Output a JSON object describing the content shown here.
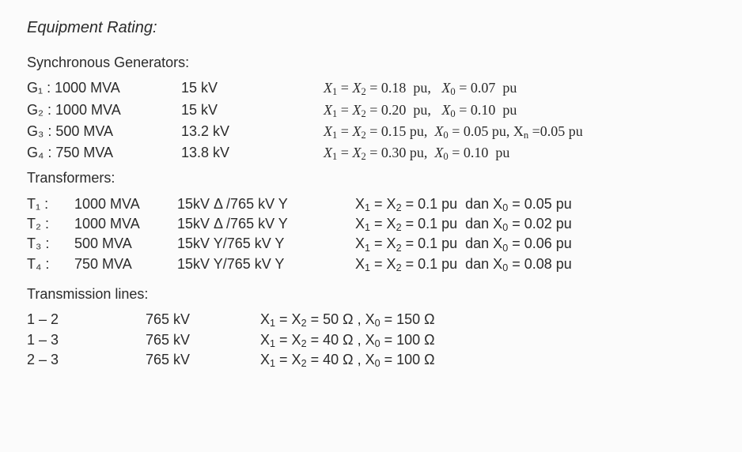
{
  "title": "Equipment Rating:",
  "sections": {
    "generators": {
      "heading": "Synchronous Generators:",
      "rows": [
        {
          "label": "G₁ : 1000 MVA",
          "volt": "15 kV",
          "react_html": "<i>X</i><sub class='fix'>1</sub> = <i>X</i><sub class='fix'>2</sub> = 0.18&nbsp;&nbsp;pu,&nbsp;&nbsp;&nbsp;<i>X</i><sub class='fix'>0</sub> = 0.07&nbsp;&nbsp;pu"
        },
        {
          "label": "G₂ : 1000 MVA",
          "volt": "15 kV",
          "react_html": "<i>X</i><sub class='fix'>1</sub> = <i>X</i><sub class='fix'>2</sub> = 0.20&nbsp;&nbsp;pu,&nbsp;&nbsp;&nbsp;<i>X</i><sub class='fix'>0</sub> = 0.10&nbsp;&nbsp;pu"
        },
        {
          "label": "G₃ : 500 MVA",
          "volt": "13.2 kV",
          "react_html": "<i>X</i><sub class='fix'>1</sub> = <i>X</i><sub class='fix'>2</sub> = 0.15 pu,&nbsp;&nbsp;<i>X</i><sub class='fix'>0</sub> = 0.05 pu, X<sub class='fix'>n</sub> =0.05 pu"
        },
        {
          "label": "G₄ : 750 MVA",
          "volt": "13.8 kV",
          "react_html": "<i>X</i><sub class='fix'>1</sub> = <i>X</i><sub class='fix'>2</sub> = 0.30 pu,&nbsp;&nbsp;<i>X</i><sub class='fix'>0</sub> = 0.10&nbsp;&nbsp;pu"
        }
      ]
    },
    "transformers": {
      "heading": "Transformers:",
      "rows": [
        {
          "id": "T₁ :",
          "mva": "1000 MVA",
          "conn": "15kV  Δ /765 kV Y",
          "react_html": "X<sub class='fix'>1</sub> = X<sub class='fix'>2</sub> = 0.1 pu&nbsp;&nbsp;dan X<sub class='fix'>0</sub> = 0.05 pu"
        },
        {
          "id": "T₂ :",
          "mva": "1000 MVA",
          "conn": "15kV  Δ /765 kV Y",
          "react_html": "X<sub class='fix'>1</sub> = X<sub class='fix'>2</sub> = 0.1 pu&nbsp;&nbsp;dan X<sub class='fix'>0</sub> = 0.02 pu"
        },
        {
          "id": "T₃ :",
          "mva": "500 MVA",
          "conn": "15kV  Y/765 kV Y",
          "react_html": "X<sub class='fix'>1</sub> = X<sub class='fix'>2</sub> = 0.1 pu&nbsp;&nbsp;dan X<sub class='fix'>0</sub> = 0.06 pu"
        },
        {
          "id": "T₄ :",
          "mva": "750 MVA",
          "conn": "15kV  Y/765 kV Y",
          "react_html": "X<sub class='fix'>1</sub> = X<sub class='fix'>2</sub> = 0.1 pu&nbsp;&nbsp;dan X<sub class='fix'>0</sub> = 0.08 pu"
        }
      ]
    },
    "lines": {
      "heading": "Transmission lines:",
      "rows": [
        {
          "pair": "1 – 2",
          "volt": "765 kV",
          "react_html": "X<sub class='fix'>1</sub> = X<sub class='fix'>2</sub> = 50 Ω , X<sub class='fix'>0</sub> = 150 Ω"
        },
        {
          "pair": "1 – 3",
          "volt": "765 kV",
          "react_html": "X<sub class='fix'>1</sub> = X<sub class='fix'>2</sub> = 40 Ω , X<sub class='fix'>0</sub> = 100 Ω"
        },
        {
          "pair": "2 – 3",
          "volt": "765 kV",
          "react_html": "X<sub class='fix'>1</sub> = X<sub class='fix'>2</sub> = 40 Ω , X<sub class='fix'>0</sub> = 100 Ω"
        }
      ]
    }
  }
}
